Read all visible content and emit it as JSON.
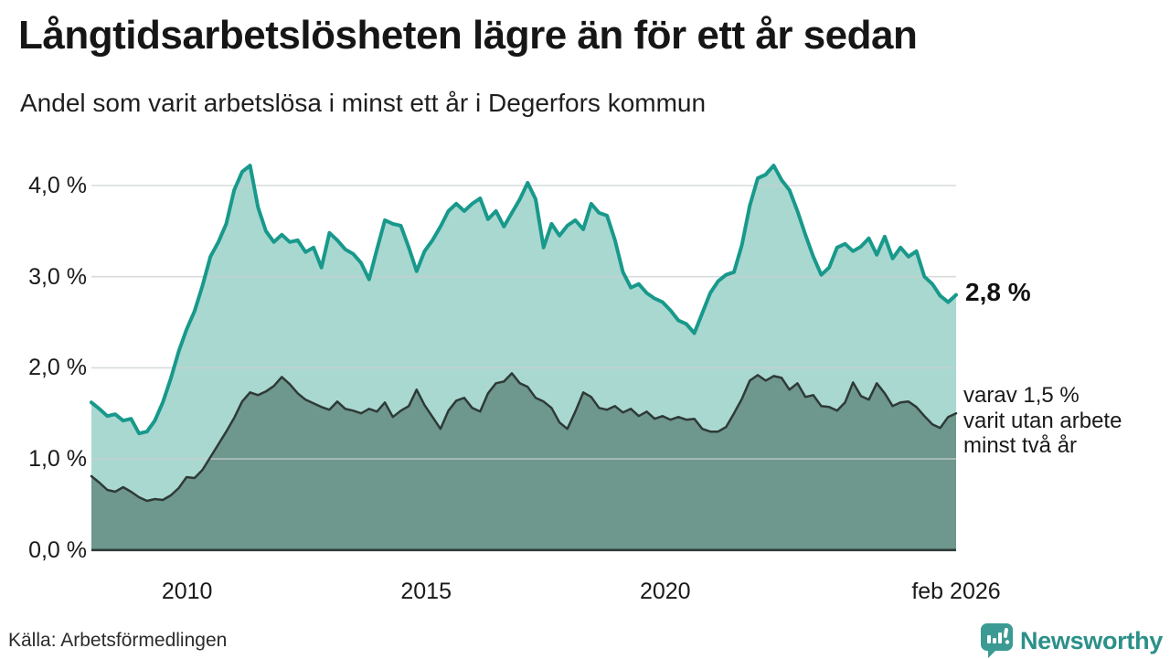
{
  "header": {
    "title": "Långtidsarbetslösheten lägre än för ett år sedan",
    "subtitle": "Andel som varit arbetslösa i minst ett år i Degerfors kommun"
  },
  "chart_data": {
    "type": "area",
    "title": "Långtidsarbetslösheten lägre än för ett år sedan",
    "subtitle": "Andel som varit arbetslösa i minst ett år i Degerfors kommun",
    "xlabel": "",
    "ylabel": "",
    "unit": "%",
    "grid": true,
    "ylim": [
      0,
      4.3
    ],
    "x_start": 2008.0,
    "x_end": 2026.083,
    "y_ticks": [
      {
        "value": 0.0,
        "label": "0,0 %"
      },
      {
        "value": 1.0,
        "label": "1,0 %"
      },
      {
        "value": 2.0,
        "label": "2,0 %"
      },
      {
        "value": 3.0,
        "label": "3,0 %"
      },
      {
        "value": 4.0,
        "label": "4,0 %"
      }
    ],
    "x_ticks": [
      {
        "pos": 2010,
        "label": "2010"
      },
      {
        "pos": 2015,
        "label": "2015"
      },
      {
        "pos": 2020,
        "label": "2020"
      },
      {
        "pos": 2026.083,
        "label": "feb 2026"
      }
    ],
    "series": [
      {
        "name": "Arbetslösa minst ett år",
        "color": "#18998b",
        "fill": "#a9d8d1",
        "stroke_width": 4,
        "latest_value": "2,8 %",
        "values": [
          1.62,
          1.55,
          1.47,
          1.49,
          1.42,
          1.44,
          1.28,
          1.3,
          1.42,
          1.62,
          1.88,
          2.18,
          2.42,
          2.62,
          2.9,
          3.22,
          3.38,
          3.58,
          3.95,
          4.15,
          4.22,
          3.76,
          3.5,
          3.38,
          3.46,
          3.38,
          3.4,
          3.27,
          3.32,
          3.1,
          3.48,
          3.4,
          3.3,
          3.25,
          3.15,
          2.97,
          3.3,
          3.62,
          3.58,
          3.56,
          3.32,
          3.06,
          3.28,
          3.4,
          3.55,
          3.72,
          3.8,
          3.72,
          3.8,
          3.86,
          3.63,
          3.72,
          3.55,
          3.7,
          3.85,
          4.03,
          3.85,
          3.32,
          3.58,
          3.45,
          3.56,
          3.62,
          3.52,
          3.8,
          3.7,
          3.67,
          3.4,
          3.05,
          2.88,
          2.92,
          2.82,
          2.76,
          2.72,
          2.63,
          2.52,
          2.48,
          2.38,
          2.6,
          2.82,
          2.95,
          3.02,
          3.05,
          3.35,
          3.78,
          4.08,
          4.12,
          4.22,
          4.06,
          3.95,
          3.72,
          3.46,
          3.22,
          3.02,
          3.1,
          3.32,
          3.36,
          3.28,
          3.33,
          3.42,
          3.24,
          3.44,
          3.2,
          3.32,
          3.22,
          3.28,
          3.0,
          2.92,
          2.79,
          2.72,
          2.8
        ]
      },
      {
        "name": "varav utan arbete minst två år",
        "color": "#2e3a36",
        "fill": "#6e978d",
        "stroke_width": 2.5,
        "latest_value": "1,5 %",
        "values": [
          0.81,
          0.74,
          0.66,
          0.64,
          0.69,
          0.64,
          0.58,
          0.54,
          0.56,
          0.55,
          0.6,
          0.68,
          0.8,
          0.79,
          0.88,
          1.02,
          1.16,
          1.3,
          1.45,
          1.63,
          1.73,
          1.7,
          1.74,
          1.8,
          1.9,
          1.82,
          1.72,
          1.65,
          1.61,
          1.57,
          1.54,
          1.63,
          1.55,
          1.53,
          1.5,
          1.55,
          1.52,
          1.62,
          1.46,
          1.53,
          1.58,
          1.76,
          1.59,
          1.46,
          1.33,
          1.53,
          1.64,
          1.67,
          1.56,
          1.52,
          1.72,
          1.83,
          1.85,
          1.94,
          1.83,
          1.79,
          1.67,
          1.63,
          1.56,
          1.4,
          1.33,
          1.52,
          1.73,
          1.68,
          1.56,
          1.54,
          1.58,
          1.51,
          1.55,
          1.47,
          1.52,
          1.44,
          1.47,
          1.43,
          1.46,
          1.43,
          1.44,
          1.33,
          1.3,
          1.3,
          1.35,
          1.5,
          1.66,
          1.86,
          1.92,
          1.86,
          1.91,
          1.89,
          1.76,
          1.83,
          1.68,
          1.7,
          1.58,
          1.57,
          1.53,
          1.62,
          1.84,
          1.69,
          1.65,
          1.83,
          1.72,
          1.58,
          1.62,
          1.63,
          1.57,
          1.47,
          1.38,
          1.34,
          1.46,
          1.5
        ]
      }
    ],
    "grid_color": "#c9cfce",
    "axis_color": "#2e3a36"
  },
  "annotations": {
    "latest_value_label": "2,8 %",
    "secondary_label": "varav 1,5 %\nvarit utan arbete\nminst två år"
  },
  "footer": {
    "source": "Källa: Arbetsförmedlingen",
    "logo_text": "Newsworthy",
    "logo_color": "#3b9a93"
  }
}
